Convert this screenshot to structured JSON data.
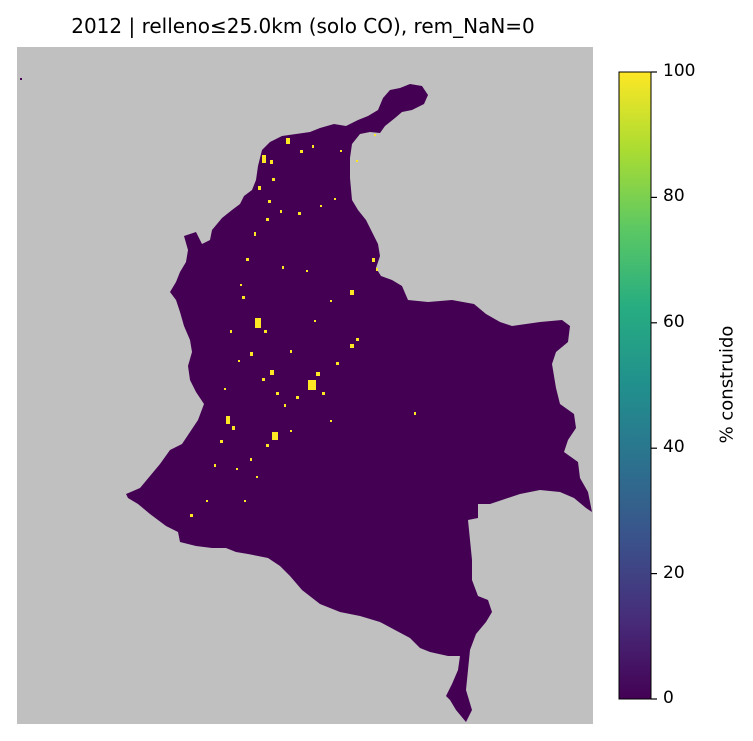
{
  "figure": {
    "title": "2012 | relleno≤25.0km (solo CO), rem_NaN=0"
  },
  "map": {
    "background_color": "#c0c0c0",
    "fill_color": "#440154",
    "highlight_color": "#fde725"
  },
  "colorbar": {
    "label": "% construido",
    "min": 0,
    "max": 100,
    "ticks": [
      "0",
      "20",
      "40",
      "60",
      "80",
      "100"
    ],
    "colormap": "viridis",
    "stops": [
      "#440154",
      "#472c7a",
      "#3b518b",
      "#2c718e",
      "#21908d",
      "#27ad81",
      "#5cc863",
      "#aadc32",
      "#fde725"
    ]
  }
}
